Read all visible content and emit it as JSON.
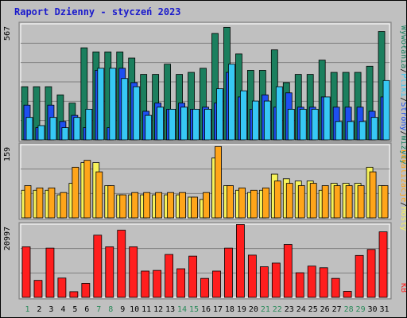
{
  "title": "Raport Dzienny -  styczeń 2023",
  "colors": {
    "background": "#c0c0c0",
    "plot_bg": "#c0c0c0",
    "grid": "#808080",
    "title_text": "#1a1acc",
    "axis_text": "#000000",
    "weekend_text": "#2a8a5a",
    "visits": "#1b7f5e",
    "pages": "#1e4ff0",
    "files": "#37c8f4",
    "hits_light": "#f7f35a",
    "sites": "#ffa51a",
    "kb": "#ff1e1e"
  },
  "chart_data": [
    {
      "type": "bar",
      "panel": "top",
      "ymax_label": "567",
      "right_label_parts": [
        "Wywołania",
        "/",
        "Pliki",
        "/",
        "Strony",
        "/",
        "Wizyty"
      ],
      "categories": [
        "1",
        "2",
        "3",
        "4",
        "5",
        "6",
        "7",
        "8",
        "9",
        "10",
        "11",
        "12",
        "13",
        "14",
        "15",
        "16",
        "17",
        "18",
        "19",
        "20",
        "21",
        "22",
        "23",
        "24",
        "25",
        "26",
        "27",
        "28",
        "29",
        "30",
        "31"
      ],
      "series": [
        {
          "name": "Wizyty",
          "values": [
            260,
            260,
            260,
            220,
            180,
            450,
            430,
            430,
            430,
            400,
            320,
            320,
            370,
            320,
            330,
            350,
            520,
            550,
            420,
            340,
            340,
            440,
            280,
            320,
            320,
            390,
            330,
            330,
            330,
            360,
            530
          ]
        },
        {
          "name": "Strony",
          "values": [
            170,
            60,
            170,
            90,
            120,
            60,
            340,
            60,
            350,
            280,
            140,
            180,
            150,
            180,
            150,
            160,
            180,
            330,
            210,
            150,
            220,
            160,
            230,
            160,
            160,
            210,
            160,
            160,
            160,
            140,
            210
          ]
        },
        {
          "name": "Pliki",
          "values": [
            110,
            70,
            110,
            60,
            110,
            150,
            350,
            350,
            300,
            260,
            120,
            160,
            150,
            160,
            150,
            150,
            250,
            370,
            240,
            190,
            190,
            260,
            150,
            150,
            150,
            210,
            90,
            90,
            90,
            110,
            290
          ]
        }
      ],
      "xlabels_weekend": [
        1,
        7,
        8,
        14,
        15,
        21,
        22,
        28,
        29
      ]
    },
    {
      "type": "bar",
      "panel": "middle",
      "ymax_label": "159",
      "right_label_parts": [
        "Lokalizacje",
        "/",
        "Hosty"
      ],
      "categories": [
        "1",
        "2",
        "3",
        "4",
        "5",
        "6",
        "7",
        "8",
        "9",
        "10",
        "11",
        "12",
        "13",
        "14",
        "15",
        "16",
        "17",
        "18",
        "19",
        "20",
        "21",
        "22",
        "23",
        "24",
        "25",
        "26",
        "27",
        "28",
        "29",
        "30",
        "31"
      ],
      "series": [
        {
          "name": "Hosty",
          "values": [
            60,
            60,
            60,
            50,
            75,
            120,
            120,
            70,
            50,
            50,
            50,
            50,
            50,
            50,
            45,
            40,
            130,
            70,
            60,
            55,
            60,
            95,
            85,
            80,
            80,
            60,
            75,
            75,
            75,
            110,
            70
          ]
        },
        {
          "name": "Lokalizacje",
          "values": [
            70,
            65,
            65,
            55,
            110,
            125,
            100,
            70,
            50,
            55,
            55,
            55,
            55,
            55,
            45,
            55,
            155,
            70,
            65,
            60,
            65,
            80,
            75,
            70,
            75,
            70,
            70,
            70,
            70,
            100,
            70
          ]
        }
      ]
    },
    {
      "type": "bar",
      "panel": "bottom",
      "ymax_label": "20997",
      "right_label_parts": [
        "KB"
      ],
      "categories": [
        "1",
        "2",
        "3",
        "4",
        "5",
        "6",
        "7",
        "8",
        "9",
        "10",
        "11",
        "12",
        "13",
        "14",
        "15",
        "16",
        "17",
        "18",
        "19",
        "20",
        "21",
        "22",
        "23",
        "24",
        "25",
        "26",
        "27",
        "28",
        "29",
        "30",
        "31"
      ],
      "series": [
        {
          "name": "KB",
          "values": [
            15200,
            5100,
            14800,
            5800,
            1700,
            4200,
            18700,
            15200,
            20200,
            15200,
            7900,
            8100,
            12900,
            8600,
            12400,
            5700,
            7900,
            14800,
            21900,
            12700,
            9200,
            10300,
            15900,
            7400,
            9400,
            8900,
            5700,
            1800,
            12600,
            14400,
            19700
          ]
        }
      ]
    }
  ]
}
